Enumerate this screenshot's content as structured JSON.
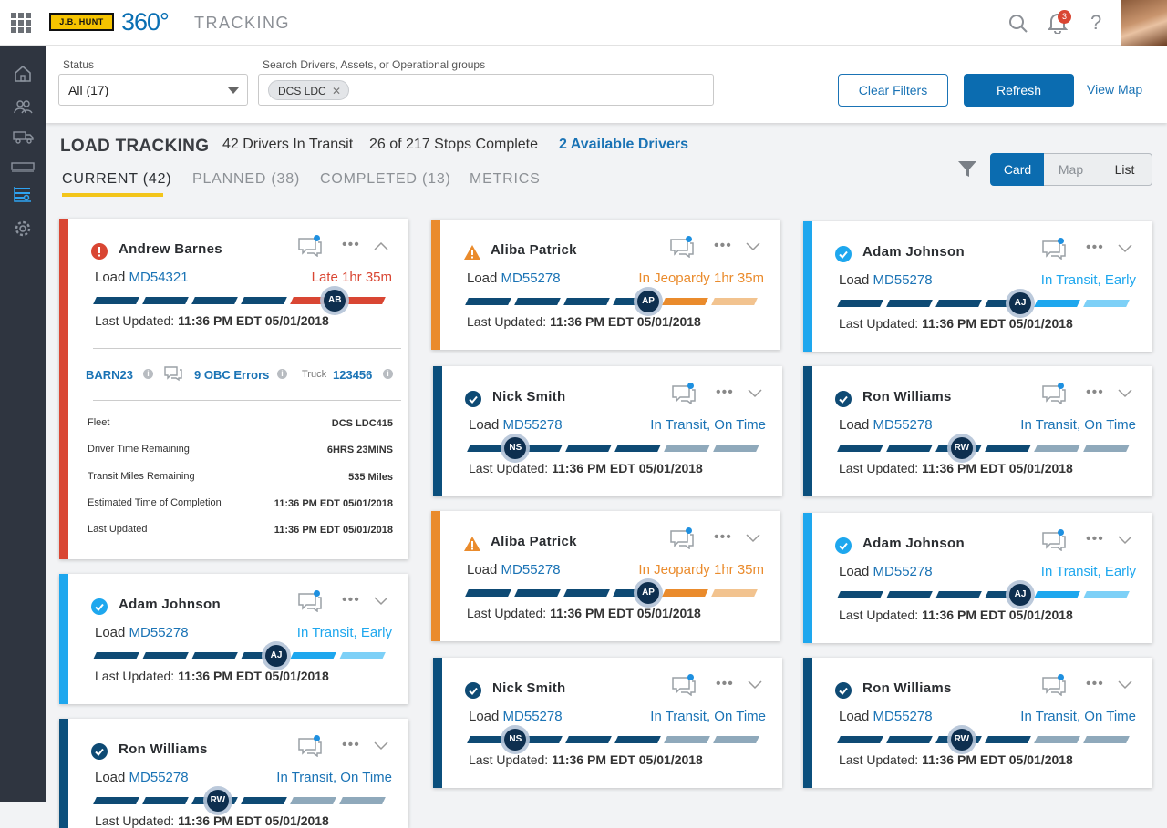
{
  "app": {
    "logo_text": "J.B. HUNT",
    "logo_360": "360°",
    "title": "TRACKING",
    "notification_count": "3",
    "help": "?"
  },
  "filters": {
    "status_label": "Status",
    "status_value": "All (17)",
    "search_label": "Search Drivers, Assets, or Operational groups",
    "chip": "DCS LDC",
    "clear_label": "Clear Filters",
    "refresh_label": "Refresh",
    "view_map_label": "View Map"
  },
  "summary": {
    "heading": "LOAD TRACKING",
    "drivers_in_transit": "42 Drivers In Transit",
    "stops_complete": "26 of 217 Stops Complete",
    "available": "2 Available Drivers"
  },
  "tabs": [
    {
      "label": "CURRENT (42)"
    },
    {
      "label": "PLANNED (38)"
    },
    {
      "label": "COMPLETED (13)"
    },
    {
      "label": "METRICS"
    }
  ],
  "views": {
    "card": "Card",
    "map": "Map",
    "list": "List"
  },
  "colors": {
    "late": "#d94633",
    "jeopardy": "#ea8b2c",
    "early": "#1ea7ee",
    "ontime": "#0b4f7c",
    "navy": "#0e4a74"
  },
  "common": {
    "load": "Load",
    "last_updated_label": "Last Updated:"
  },
  "cards": [
    {
      "name": "Andrew Barnes",
      "initials": "AB",
      "load": "MD54321",
      "status": "Late 1hr 35m",
      "updated": "11:36 PM EDT 05/01/2018",
      "kind": "late",
      "progress": 0.82
    },
    {
      "name": "Adam Johnson",
      "initials": "AJ",
      "load": "MD55278",
      "status": "In Transit, Early",
      "updated": "11:36 PM EDT 05/01/2018",
      "kind": "early",
      "progress": 0.62
    },
    {
      "name": "Ron Williams",
      "initials": "RW",
      "load": "MD55278",
      "status": "In Transit, On Time",
      "updated": "11:36 PM EDT 05/01/2018",
      "kind": "ontime",
      "progress": 0.42
    },
    {
      "name": "Aliba Patrick",
      "initials": "AP",
      "load": "MD55278",
      "status": "In Jeopardy 1hr 35m",
      "updated": "11:36 PM EDT 05/01/2018",
      "kind": "jeopardy",
      "progress": 0.62
    },
    {
      "name": "Nick Smith",
      "initials": "NS",
      "load": "MD55278",
      "status": "In Transit, On Time",
      "updated": "11:36 PM EDT 05/01/2018",
      "kind": "ontime",
      "progress": 0.16
    },
    {
      "name": "Aliba Patrick",
      "initials": "AP",
      "load": "MD55278",
      "status": "In Jeopardy 1hr 35m",
      "updated": "11:36 PM EDT 05/01/2018",
      "kind": "jeopardy",
      "progress": 0.62
    },
    {
      "name": "Nick Smith",
      "initials": "NS",
      "load": "MD55278",
      "status": "In Transit, On Time",
      "updated": "11:36 PM EDT 05/01/2018",
      "kind": "ontime",
      "progress": 0.16
    },
    {
      "name": "Adam Johnson",
      "initials": "AJ",
      "load": "MD55278",
      "status": "In Transit, Early",
      "updated": "11:36 PM EDT 05/01/2018",
      "kind": "early",
      "progress": 0.62
    },
    {
      "name": "Ron Williams",
      "initials": "RW",
      "load": "MD55278",
      "status": "In Transit, On Time",
      "updated": "11:36 PM EDT 05/01/2018",
      "kind": "ontime",
      "progress": 0.42
    },
    {
      "name": "Adam Johnson",
      "initials": "AJ",
      "load": "MD55278",
      "status": "In Transit, Early",
      "updated": "11:36 PM EDT 05/01/2018",
      "kind": "early",
      "progress": 0.62
    },
    {
      "name": "Ron Williams",
      "initials": "RW",
      "load": "MD55278",
      "status": "In Transit, On Time",
      "updated": "11:36 PM EDT 05/01/2018",
      "kind": "ontime",
      "progress": 0.42
    }
  ],
  "expanded": {
    "trailer": "BARN23",
    "obc": "9 OBC Errors",
    "truck_label": "Truck",
    "truck": "123456",
    "rows": [
      {
        "label": "Fleet",
        "value": "DCS LDC415"
      },
      {
        "label": "Driver Time Remaining",
        "value": "6HRS 23MINS"
      },
      {
        "label": "Transit Miles Remaining",
        "value": "535 Miles"
      },
      {
        "label": "Estimated Time of Completion",
        "value": "11:36 PM EDT 05/01/2018"
      },
      {
        "label": "Last Updated",
        "value": "11:36 PM EDT 05/01/2018"
      }
    ]
  }
}
